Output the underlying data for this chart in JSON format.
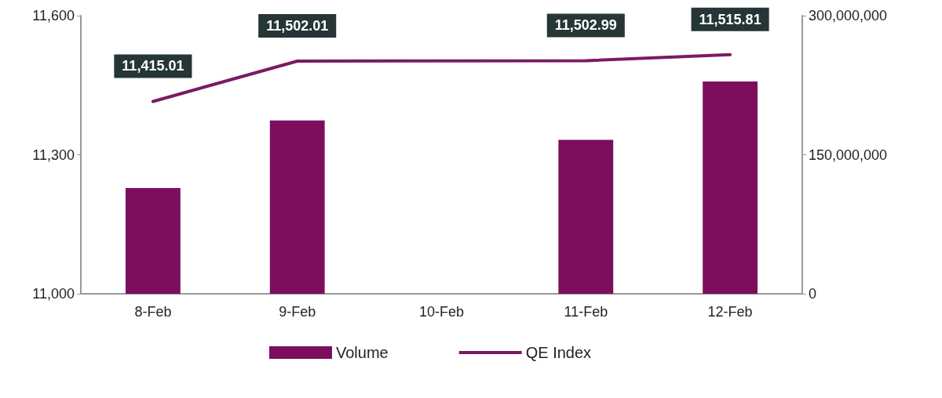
{
  "chart_data": {
    "type": "bar",
    "categories": [
      "8-Feb",
      "9-Feb",
      "10-Feb",
      "11-Feb",
      "12-Feb"
    ],
    "series": [
      {
        "name": "Volume",
        "axis": "y2",
        "color": "#7b0f5e",
        "values": [
          114000000,
          187000000,
          null,
          166000000,
          229000000
        ]
      },
      {
        "name": "QE Index",
        "type": "line",
        "color": "#7b1b62",
        "values": [
          11415.01,
          11502.01,
          null,
          11502.99,
          11515.81
        ],
        "value_labels": [
          "11,415.01",
          "11,502.01",
          null,
          "11,502.99",
          "11,515.81"
        ]
      }
    ],
    "ylim": [
      11000,
      11600
    ],
    "yticks": [
      {
        "value": 11000,
        "label": "11,000"
      },
      {
        "value": 11300,
        "label": "11,300"
      },
      {
        "value": 11600,
        "label": "11,600"
      }
    ],
    "y2lim": [
      0,
      300000000
    ],
    "y2ticks": [
      {
        "value": 0,
        "label": "0"
      },
      {
        "value": 150000000,
        "label": "150,000,000"
      },
      {
        "value": 300000000,
        "label": "300,000,000"
      }
    ],
    "grid": false,
    "legend": "bottom",
    "marker": "none",
    "line_style": "solid"
  }
}
